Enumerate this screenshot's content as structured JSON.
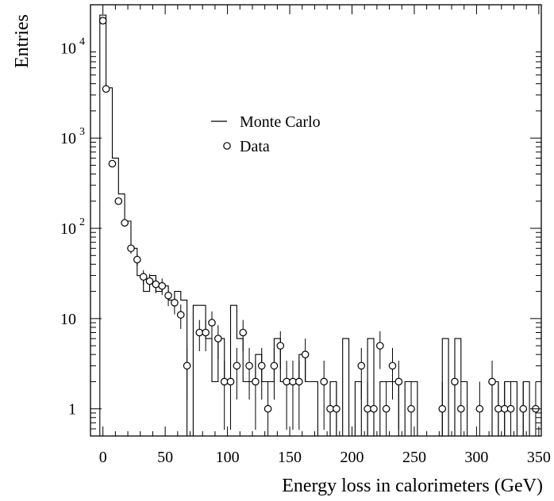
{
  "chart_data": {
    "type": "scatter",
    "title": "",
    "xlabel": "Energy loss in calorimeters (GeV)",
    "ylabel": "Entries",
    "xlim": [
      -10,
      352
    ],
    "ylim": [
      0.5,
      30000
    ],
    "y_scale": "log",
    "x_ticks": [
      0,
      50,
      100,
      150,
      200,
      250,
      300,
      350
    ],
    "x_tick_labels": [
      "0",
      "50",
      "100",
      "150",
      "200",
      "250",
      "300",
      "350"
    ],
    "y_ticks": [
      {
        "value": 1,
        "base": "1",
        "exp": ""
      },
      {
        "value": 10,
        "base": "10",
        "exp": ""
      },
      {
        "value": 100,
        "base": "10",
        "exp": "2"
      },
      {
        "value": 1000,
        "base": "10",
        "exp": "3"
      },
      {
        "value": 10000,
        "base": "10",
        "exp": "4"
      }
    ],
    "legend": {
      "position": "upper-middle",
      "entries": [
        "Monte Carlo",
        "Data"
      ]
    },
    "series": [
      {
        "name": "Monte Carlo",
        "style": "histogram-step",
        "bin_edges": [
          -2.5,
          2.5,
          7.5,
          12.5,
          17.5,
          22.5,
          27.5,
          32.5,
          37.5,
          42.5,
          47.5,
          52.5,
          57.5,
          62.5,
          67.5,
          72.5,
          77.5,
          82.5,
          87.5,
          92.5,
          97.5,
          102.5,
          107.5,
          112.5,
          117.5,
          122.5,
          127.5,
          132.5,
          137.5,
          142.5,
          147.5,
          152.5,
          157.5,
          162.5,
          167.5,
          172.5,
          177.5,
          182.5,
          187.5,
          192.5,
          197.5,
          202.5,
          207.5,
          212.5,
          217.5,
          222.5,
          227.5,
          232.5,
          237.5,
          242.5,
          247.5,
          252.5,
          257.5,
          262.5,
          267.5,
          272.5,
          277.5,
          282.5,
          287.5,
          292.5,
          297.5,
          302.5,
          307.5,
          312.5,
          317.5,
          322.5,
          327.5,
          332.5,
          337.5,
          342.5,
          347.5
        ],
        "values": [
          23000,
          3600,
          600,
          240,
          120,
          60,
          30,
          20,
          30,
          20,
          23,
          16,
          20,
          16,
          0.5,
          14,
          14,
          6,
          2,
          6,
          2,
          14,
          6,
          2,
          2,
          4,
          2,
          2,
          6,
          2,
          2,
          2,
          4,
          2,
          2,
          0.5,
          0.5,
          2,
          0.5,
          6,
          0.5,
          2,
          0.5,
          6,
          0.5,
          2,
          2,
          2,
          0.5,
          2,
          2,
          0.5,
          0.5,
          0.5,
          0.5,
          6,
          0.5,
          6,
          2,
          0.5,
          0.5,
          0.5,
          0.5,
          2,
          0.5,
          2,
          2,
          0.5,
          2,
          0.5
        ]
      },
      {
        "name": "Data",
        "style": "open-circles-with-error-bars",
        "x": [
          0,
          2.5,
          7.5,
          12.5,
          17.5,
          22.5,
          27.5,
          32.5,
          37.5,
          42.5,
          47.5,
          52.5,
          57.5,
          62.5,
          67.5,
          77.5,
          82.5,
          87.5,
          92.5,
          97.5,
          102.5,
          107.5,
          112.5,
          117.5,
          122.5,
          127.5,
          132.5,
          137.5,
          142.5,
          147.5,
          152.5,
          157.5,
          162.5,
          177.5,
          182.5,
          187.5,
          207.5,
          212.5,
          217.5,
          222.5,
          227.5,
          232.5,
          237.5,
          247.5,
          272.5,
          282.5,
          287.5,
          302.5,
          312.5,
          317.5,
          322.5,
          327.5,
          337.5,
          347.5
        ],
        "y": [
          20000,
          3500,
          520,
          200,
          115,
          60,
          45,
          29,
          26,
          24,
          23,
          18,
          15,
          11,
          3,
          7,
          7,
          9,
          6,
          2,
          2,
          3,
          7,
          3,
          2,
          3,
          1,
          3,
          5,
          2,
          2,
          2,
          4,
          2,
          1,
          1,
          3,
          1,
          1,
          5,
          1,
          3,
          2,
          1,
          1,
          2,
          1,
          1,
          2,
          1,
          1,
          1,
          1,
          1
        ]
      }
    ]
  }
}
